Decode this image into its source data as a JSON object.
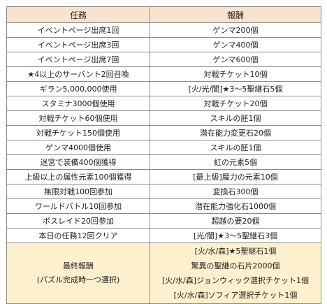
{
  "header": {
    "task": "任務",
    "reward": "報酬"
  },
  "rows": [
    {
      "task": "イベントページ出席1回",
      "reward": "ゲンマ200個"
    },
    {
      "task": "イベントページ出席3回",
      "reward": "ゲンマ400個"
    },
    {
      "task": "イベントページ出席7回",
      "reward": "ゲンマ600個"
    },
    {
      "task": "★4以上のサーバント2回召喚",
      "reward": "対戦チケット10個"
    },
    {
      "task": "ギラン5,000,000使用",
      "reward": "[火/光/闇]★3〜5聖継石5個"
    },
    {
      "task": "スタミナ3000個使用",
      "reward": "対戦チケット20個"
    },
    {
      "task": "対戦チケット60個使用",
      "reward": "スキルの胚1個"
    },
    {
      "task": "対戦チケット150個使用",
      "reward": "潜在能力変更石20個"
    },
    {
      "task": "ゲンマ4000個使用",
      "reward": "スキルの胚1個"
    },
    {
      "task": "迷宮で装備400個獲得",
      "reward": "虹の元素5個"
    },
    {
      "task": "上級以上の属性元素100個獲得",
      "reward": "[最上級]魔力の元素10個"
    },
    {
      "task": "無限対戦100回参加",
      "reward": "変換石300個"
    },
    {
      "task": "ワールドバトル10回参加",
      "reward": "潜在能力強化石1000個"
    },
    {
      "task": "ボスレイド20回参加",
      "reward": "超越の要20個"
    },
    {
      "task": "本日の任務12回クリア",
      "reward": "[光/闇]★3〜5聖継石3個"
    }
  ],
  "final": {
    "title": "最終報酬",
    "note": "(パズル完成時一つ選択)",
    "rewards": [
      "[火/水/森]★5聖継石1個",
      "驚異の聖継の石片2000個",
      "[火/水/森]ジョンウィック選択チケット1個",
      "[火/水/森]ソフィア選択チケット1個"
    ]
  }
}
